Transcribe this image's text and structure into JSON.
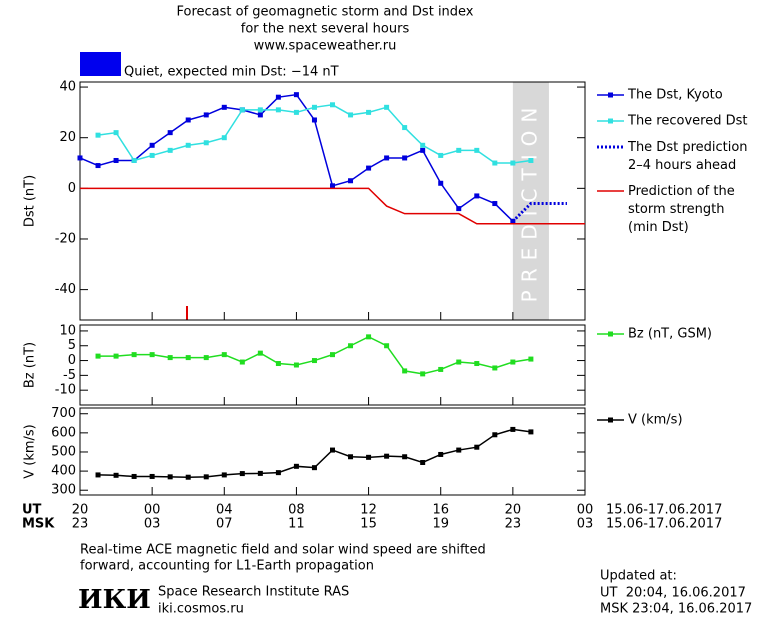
{
  "header": {
    "title_lines": [
      "Forecast of geomagnetic storm and Dst index",
      "for the next several hours",
      "www.spaceweather.ru"
    ],
    "status": "Quiet, expected min Dst: −14 nT",
    "status_color": "#0000ee"
  },
  "chart_data": [
    {
      "type": "line",
      "ylabel": "Dst (nT)",
      "xlim": [
        0,
        28
      ],
      "ylim": [
        -52,
        42
      ],
      "yticks": [
        -40,
        -20,
        0,
        20,
        40
      ],
      "shaded_x": [
        24,
        26
      ],
      "shaded_label": "PREDICTION",
      "series": [
        {
          "name": "The Dst, Kyoto",
          "color": "#0000dd",
          "marker": true,
          "dash": false,
          "x": [
            0,
            1,
            2,
            3,
            4,
            5,
            6,
            7,
            8,
            9,
            10,
            11,
            12,
            13,
            14,
            15,
            16,
            17,
            18,
            19,
            20,
            21,
            22,
            23,
            24
          ],
          "values": [
            12,
            9,
            11,
            11,
            17,
            22,
            27,
            29,
            32,
            31,
            29,
            36,
            37,
            27,
            1,
            3,
            8,
            12,
            12,
            15,
            2,
            -8,
            -3,
            -6,
            -13
          ]
        },
        {
          "name": "The recovered Dst",
          "color": "#30e0e0",
          "marker": true,
          "dash": false,
          "x": [
            1,
            2,
            3,
            4,
            5,
            6,
            7,
            8,
            9,
            10,
            11,
            12,
            13,
            14,
            15,
            16,
            17,
            18,
            19,
            20,
            21,
            22,
            23,
            24,
            25
          ],
          "values": [
            21,
            22,
            11,
            13,
            15,
            17,
            18,
            20,
            31,
            31,
            31,
            30,
            32,
            33,
            29,
            30,
            32,
            24,
            17,
            13,
            15,
            15,
            10,
            10,
            11
          ]
        },
        {
          "name": "The Dst prediction\n2–4 hours ahead",
          "color": "#0000dd",
          "marker": false,
          "dash": true,
          "x": [
            24,
            25,
            26,
            27
          ],
          "values": [
            -13,
            -6,
            -6,
            -6
          ]
        },
        {
          "name": "Prediction of the\nstorm strength\n(min Dst)",
          "color": "#e00000",
          "marker": false,
          "dash": false,
          "x": [
            0,
            16,
            17,
            18,
            21,
            22,
            28
          ],
          "values": [
            0,
            0,
            -7,
            -10,
            -10,
            -14,
            -14
          ]
        }
      ]
    },
    {
      "type": "line",
      "ylabel": "Bz (nT)",
      "xlim": [
        0,
        28
      ],
      "ylim": [
        -15,
        12
      ],
      "yticks": [
        -10,
        -5,
        0,
        5,
        10
      ],
      "series": [
        {
          "name": "Bz (nT, GSM)",
          "color": "#20dd20",
          "marker": true,
          "dash": false,
          "x": [
            1,
            2,
            3,
            4,
            5,
            6,
            7,
            8,
            9,
            10,
            11,
            12,
            13,
            14,
            15,
            16,
            17,
            18,
            19,
            20,
            21,
            22,
            23,
            24,
            25
          ],
          "values": [
            1.5,
            1.5,
            2,
            2,
            1,
            1,
            1,
            2,
            -0.5,
            2.5,
            -1,
            -1.5,
            0,
            2,
            5,
            8,
            5,
            -3.5,
            -4.5,
            -3,
            -0.5,
            -1,
            -2.5,
            -0.5,
            0.5
          ]
        }
      ]
    },
    {
      "type": "line",
      "ylabel": "V (km/s)",
      "xlim": [
        0,
        28
      ],
      "ylim": [
        275,
        730
      ],
      "yticks": [
        300,
        400,
        500,
        600,
        700
      ],
      "series": [
        {
          "name": "V (km/s)",
          "color": "#000000",
          "marker": true,
          "dash": false,
          "x": [
            1,
            2,
            3,
            4,
            5,
            6,
            7,
            8,
            9,
            10,
            11,
            12,
            13,
            14,
            15,
            16,
            17,
            18,
            19,
            20,
            21,
            22,
            23,
            24,
            25
          ],
          "values": [
            380,
            378,
            372,
            372,
            370,
            368,
            370,
            380,
            387,
            388,
            392,
            425,
            418,
            510,
            475,
            472,
            478,
            475,
            445,
            487,
            510,
            525,
            590,
            618,
            605
          ]
        }
      ],
      "xticks": [
        {
          "value": 0,
          "label": "20"
        },
        {
          "value": 4,
          "label": "00"
        },
        {
          "value": 8,
          "label": "04"
        },
        {
          "value": 12,
          "label": "08"
        },
        {
          "value": 16,
          "label": "12"
        },
        {
          "value": 20,
          "label": "16"
        },
        {
          "value": 24,
          "label": "20"
        },
        {
          "value": 28,
          "label": "00"
        }
      ],
      "msk_labels": [
        "23",
        "03",
        "07",
        "11",
        "15",
        "19",
        "23",
        "03"
      ],
      "row_labels": [
        "UT",
        "MSK"
      ],
      "date_range": "15.06-17.06.2017"
    }
  ],
  "footer": {
    "note_lines": [
      "Real-time ACE magnetic field and solar wind speed are shifted",
      "forward, accounting for L1-Earth propagation"
    ],
    "logo": "ИКИ",
    "institute": "Space Research Institute RAS",
    "site": "iki.cosmos.ru",
    "updated": "Updated at:",
    "ut_time": "UT  20:04, 16.06.2017",
    "msk_time": "MSK 23:04, 16.06.2017"
  }
}
